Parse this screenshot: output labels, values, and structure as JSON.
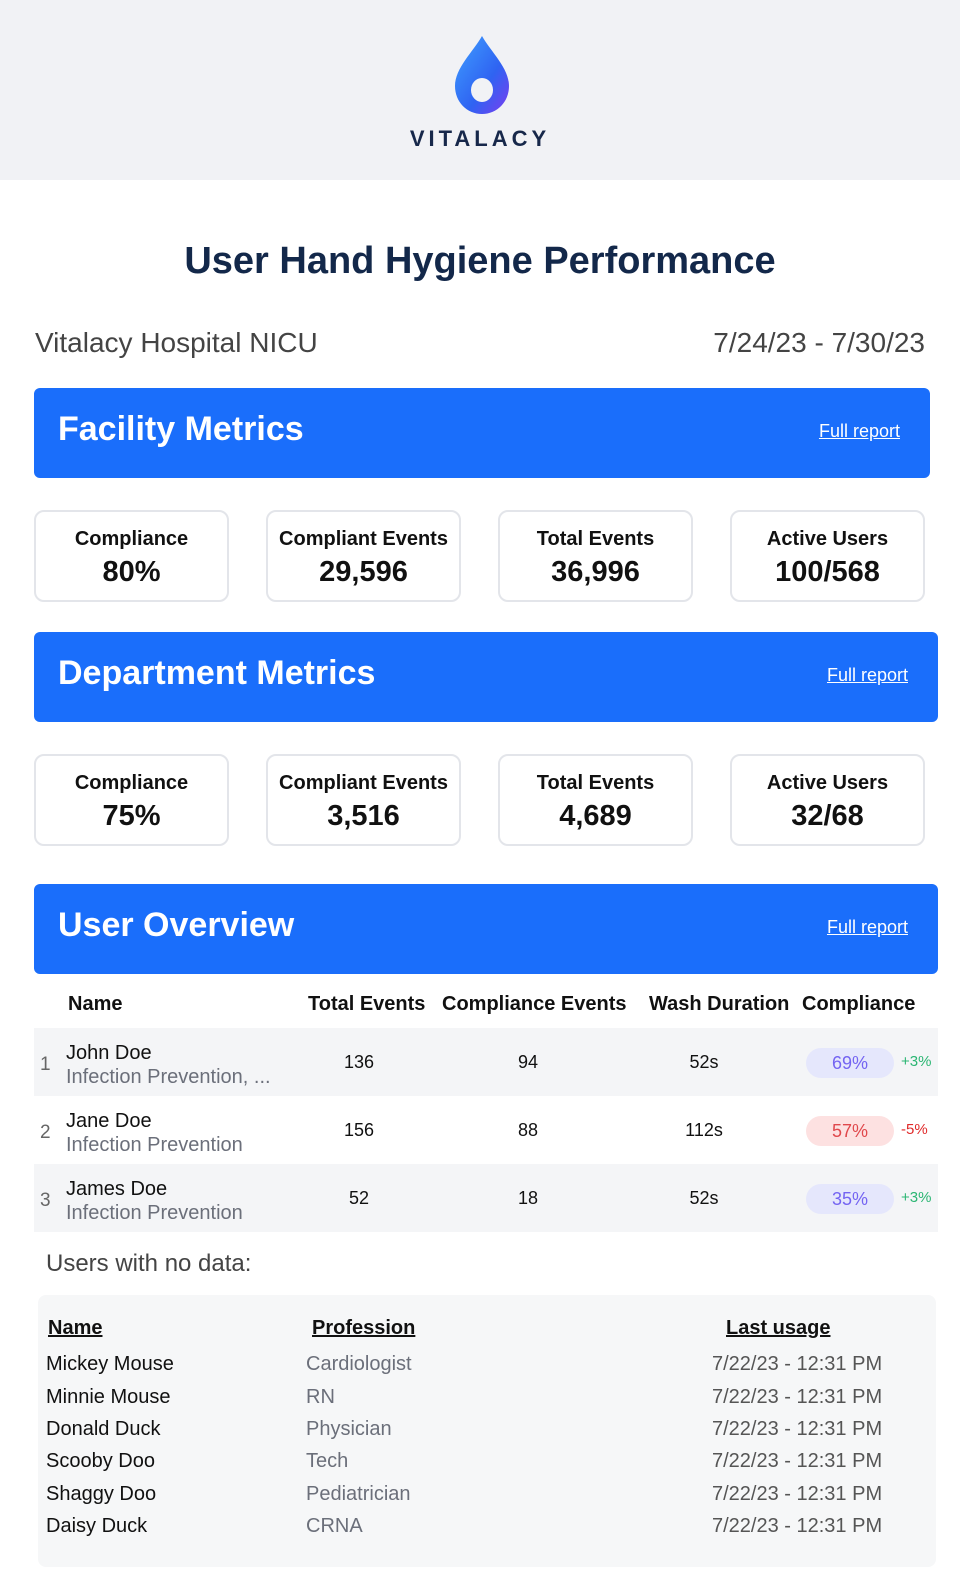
{
  "brand": {
    "name": "VITALACY",
    "logo_icon": "water-drop-icon",
    "accent": "#1a6efb"
  },
  "title": "User Hand Hygiene Performance",
  "facility": "Vitalacy Hospital NICU",
  "date_range": "7/24/23 - 7/30/23",
  "facility_metrics": {
    "heading": "Facility Metrics",
    "link": "Full report",
    "cards": [
      {
        "label": "Compliance",
        "value": "80%"
      },
      {
        "label": "Compliant Events",
        "value": "29,596"
      },
      {
        "label": "Total Events",
        "value": "36,996"
      },
      {
        "label": "Active Users",
        "value": "100/568"
      }
    ]
  },
  "department_metrics": {
    "heading": "Department Metrics",
    "link": "Full report",
    "cards": [
      {
        "label": "Compliance",
        "value": "75%"
      },
      {
        "label": "Compliant Events",
        "value": "3,516"
      },
      {
        "label": "Total Events",
        "value": "4,689"
      },
      {
        "label": "Active Users",
        "value": "32/68"
      }
    ]
  },
  "user_overview": {
    "heading": "User Overview",
    "link": "Full report",
    "columns": [
      "Name",
      "Total Events",
      "Compliance Events",
      "Wash Duration",
      "Compliance"
    ],
    "rows": [
      {
        "rank": "1",
        "name": "John Doe",
        "dept": "Infection Prevention, ...",
        "total": "136",
        "compliant": "94",
        "wash": "52s",
        "compliance": "69%",
        "delta": "+3%"
      },
      {
        "rank": "2",
        "name": "Jane Doe",
        "dept": "Infection Prevention",
        "total": "156",
        "compliant": "88",
        "wash": "112s",
        "compliance": "57%",
        "delta": "-5%"
      },
      {
        "rank": "3",
        "name": "James Doe",
        "dept": "Infection Prevention",
        "total": "52",
        "compliant": "18",
        "wash": "52s",
        "compliance": "35%",
        "delta": "+3%"
      }
    ]
  },
  "no_data": {
    "title": "Users with no data:",
    "columns": [
      "Name",
      "Profession",
      "Last usage"
    ],
    "rows": [
      {
        "name": "Mickey Mouse",
        "profession": "Cardiologist",
        "last": "7/22/23 - 12:31 PM"
      },
      {
        "name": "Minnie Mouse",
        "profession": "RN",
        "last": "7/22/23 - 12:31 PM"
      },
      {
        "name": "Donald Duck",
        "profession": "Physician",
        "last": "7/22/23 - 12:31 PM"
      },
      {
        "name": "Scooby Doo",
        "profession": "Tech",
        "last": "7/22/23 - 12:31 PM"
      },
      {
        "name": "Shaggy Doo",
        "profession": "Pediatrician",
        "last": "7/22/23 - 12:31 PM"
      },
      {
        "name": "Daisy Duck",
        "profession": "CRNA",
        "last": "7/22/23 - 12:31 PM"
      }
    ]
  }
}
